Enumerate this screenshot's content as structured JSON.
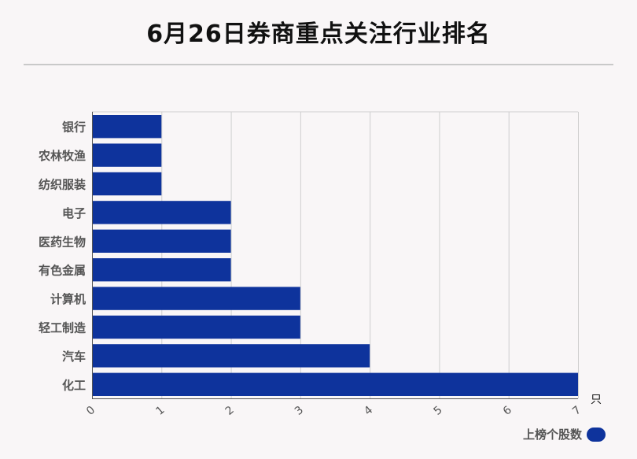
{
  "title": "6月26日券商重点关注行业排名",
  "colors": {
    "bar": "#0e339c",
    "grid": "#cfcfcf",
    "axis": "#555555",
    "text": "#555555"
  },
  "chart_data": {
    "type": "bar",
    "orientation": "horizontal",
    "categories": [
      "银行",
      "农林牧渔",
      "纺织服装",
      "电子",
      "医药生物",
      "有色金属",
      "计算机",
      "轻工制造",
      "汽车",
      "化工"
    ],
    "series": [
      {
        "name": "上榜个股数",
        "values": [
          1,
          1,
          1,
          2,
          2,
          2,
          3,
          3,
          4,
          7
        ]
      }
    ],
    "xlim": [
      0,
      7
    ],
    "x_ticks": [
      "0",
      "1",
      "2",
      "3",
      "4",
      "5",
      "6",
      "7"
    ],
    "x_unit": "只",
    "grid": true,
    "legend": "bottom-right"
  }
}
